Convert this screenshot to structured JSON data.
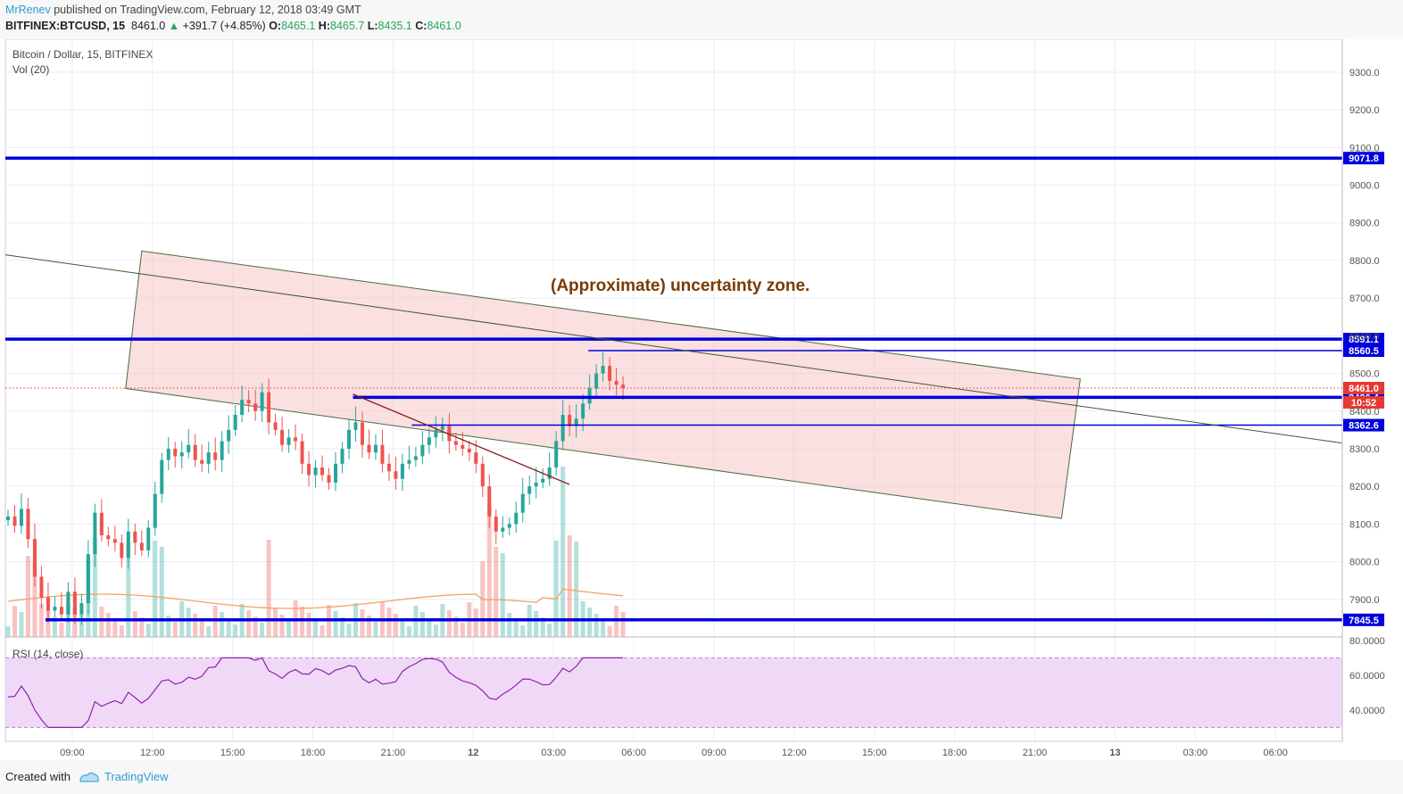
{
  "header": {
    "author": "MrRenev",
    "published": "published on TradingView.com, February 12, 2018 03:49 GMT",
    "symbol": "BITFINEX:BTCUSD, 15",
    "last": "8461.0",
    "change": "+391.7 (+4.85%)",
    "o_label": "O:",
    "o": "8465.1",
    "h_label": "H:",
    "h": "8465.7",
    "l_label": "L:",
    "l": "8435.1",
    "c_label": "C:",
    "c": "8461.0"
  },
  "footer": {
    "created_with": "Created with",
    "brand": "TradingView"
  },
  "chart_data": {
    "type": "candlestick",
    "title": "Bitcoin / Dollar, 15, BITFINEX",
    "volume_label": "Vol (20)",
    "annotation": "(Approximate) uncertainty zone.",
    "y_ticks": [
      "7900.0",
      "8000.0",
      "8100.0",
      "8200.0",
      "8300.0",
      "8400.0",
      "8500.0",
      "8600.0",
      "8700.0",
      "8800.0",
      "8900.0",
      "9000.0",
      "9100.0",
      "9200.0",
      "9300.0"
    ],
    "y_range": [
      7800,
      9340
    ],
    "x_ticks": [
      "09:00",
      "12:00",
      "15:00",
      "18:00",
      "21:00",
      "12",
      "03:00",
      "06:00",
      "09:00",
      "12:00",
      "15:00",
      "18:00",
      "21:00",
      "13",
      "03:00",
      "06:00"
    ],
    "time_range_hours": [
      6.5,
      56.5
    ],
    "last_price": "8461.0",
    "countdown": "10:52",
    "support_resistance_levels": [
      {
        "label": "9071.8",
        "value": 9071.8
      },
      {
        "label": "8591.1",
        "value": 8591.1
      },
      {
        "label": "8560.5",
        "value": 8560.5
      },
      {
        "label": "8436.4",
        "value": 8436.4
      },
      {
        "label": "8362.6",
        "value": 8362.6
      },
      {
        "label": "7845.5",
        "value": 7845.5
      }
    ],
    "candles_close": [
      8120,
      8095,
      8140,
      8060,
      7960,
      7905,
      7870,
      7880,
      7860,
      7920,
      7860,
      7890,
      8020,
      8130,
      8070,
      8060,
      8050,
      8010,
      8080,
      8050,
      8030,
      8090,
      8180,
      8270,
      8300,
      8280,
      8290,
      8310,
      8270,
      8260,
      8290,
      8270,
      8320,
      8350,
      8390,
      8430,
      8420,
      8400,
      8450,
      8370,
      8350,
      8310,
      8330,
      8320,
      8260,
      8230,
      8250,
      8230,
      8210,
      8260,
      8300,
      8350,
      8370,
      8310,
      8290,
      8310,
      8260,
      8240,
      8220,
      8260,
      8270,
      8280,
      8310,
      8330,
      8350,
      8360,
      8320,
      8310,
      8300,
      8290,
      8260,
      8200,
      8120,
      8080,
      8090,
      8100,
      8130,
      8180,
      8200,
      8210,
      8220,
      8250,
      8320,
      8390,
      8360,
      8380,
      8420,
      8460,
      8500,
      8520,
      8480,
      8470,
      8461
    ],
    "rsi": {
      "label": "RSI (14, close)",
      "ticks": [
        "40.0000",
        "60.0000",
        "80.0000"
      ],
      "band": [
        30,
        70
      ],
      "range": [
        22,
        82
      ]
    }
  },
  "colors": {
    "up": "#26a69a",
    "down": "#ef5350",
    "level": "#0000dd",
    "zone_fill": "#f5c6c6",
    "zone_stroke": "#4a6b3a",
    "annotation": "#7a3b00",
    "rsi_line": "#8e24aa",
    "rsi_band": "#f0d9f7"
  }
}
